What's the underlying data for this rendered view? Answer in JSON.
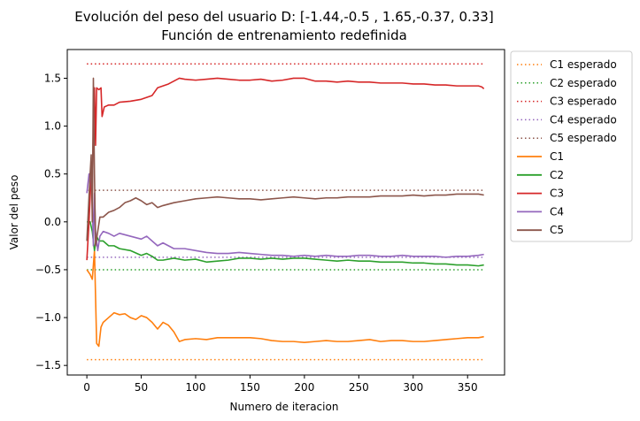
{
  "chart_data": {
    "type": "line",
    "title": "Evolución del peso del usuario D: [-1.44,-0.5 , 1.65,-0.37, 0.33]",
    "subtitle": "Función de entrenamiento redefinida",
    "xlabel": "Numero de iteracion",
    "ylabel": "Valor del peso",
    "xlim": [
      -18,
      384
    ],
    "ylim": [
      -1.6,
      1.8
    ],
    "xticks": [
      0,
      50,
      100,
      150,
      200,
      250,
      300,
      350
    ],
    "yticks": [
      -1.5,
      -1.0,
      -0.5,
      0.0,
      0.5,
      1.0,
      1.5
    ],
    "xtick_labels": [
      "0",
      "50",
      "100",
      "150",
      "200",
      "250",
      "300",
      "350"
    ],
    "ytick_labels": [
      "−1.5",
      "−1.0",
      "−0.5",
      "0.0",
      "0.5",
      "1.0",
      "1.5"
    ],
    "grid": false,
    "legend_position": "outside-right",
    "expected": [
      {
        "name": "C1 esperado",
        "value": -1.44,
        "color": "#ff7f0e"
      },
      {
        "name": "C2 esperado",
        "value": -0.5,
        "color": "#2ca02c"
      },
      {
        "name": "C3 esperado",
        "value": 1.65,
        "color": "#d62728"
      },
      {
        "name": "C4 esperado",
        "value": -0.37,
        "color": "#9467bd"
      },
      {
        "name": "C5 esperado",
        "value": 0.33,
        "color": "#8c564b"
      }
    ],
    "series": [
      {
        "name": "C1",
        "color": "#ff7f0e",
        "points": [
          [
            0,
            -0.5
          ],
          [
            3,
            -0.55
          ],
          [
            5,
            -0.6
          ],
          [
            7,
            -0.3
          ],
          [
            9,
            -1.27
          ],
          [
            11,
            -1.3
          ],
          [
            13,
            -1.1
          ],
          [
            15,
            -1.05
          ],
          [
            20,
            -1.0
          ],
          [
            25,
            -0.95
          ],
          [
            30,
            -0.97
          ],
          [
            35,
            -0.96
          ],
          [
            40,
            -1.0
          ],
          [
            45,
            -1.02
          ],
          [
            50,
            -0.98
          ],
          [
            55,
            -1.0
          ],
          [
            60,
            -1.05
          ],
          [
            65,
            -1.12
          ],
          [
            70,
            -1.05
          ],
          [
            75,
            -1.08
          ],
          [
            80,
            -1.15
          ],
          [
            85,
            -1.25
          ],
          [
            90,
            -1.23
          ],
          [
            100,
            -1.22
          ],
          [
            110,
            -1.23
          ],
          [
            120,
            -1.21
          ],
          [
            130,
            -1.21
          ],
          [
            150,
            -1.21
          ],
          [
            160,
            -1.22
          ],
          [
            170,
            -1.24
          ],
          [
            180,
            -1.25
          ],
          [
            190,
            -1.25
          ],
          [
            200,
            -1.26
          ],
          [
            210,
            -1.25
          ],
          [
            220,
            -1.24
          ],
          [
            230,
            -1.25
          ],
          [
            240,
            -1.25
          ],
          [
            250,
            -1.24
          ],
          [
            260,
            -1.23
          ],
          [
            270,
            -1.25
          ],
          [
            280,
            -1.24
          ],
          [
            290,
            -1.24
          ],
          [
            300,
            -1.25
          ],
          [
            310,
            -1.25
          ],
          [
            320,
            -1.24
          ],
          [
            330,
            -1.23
          ],
          [
            340,
            -1.22
          ],
          [
            350,
            -1.21
          ],
          [
            360,
            -1.21
          ],
          [
            365,
            -1.2
          ]
        ]
      },
      {
        "name": "C2",
        "color": "#2ca02c",
        "points": [
          [
            0,
            0.0
          ],
          [
            3,
            0.0
          ],
          [
            5,
            -0.1
          ],
          [
            7,
            -0.3
          ],
          [
            9,
            -0.15
          ],
          [
            11,
            -0.2
          ],
          [
            15,
            -0.2
          ],
          [
            20,
            -0.25
          ],
          [
            25,
            -0.25
          ],
          [
            30,
            -0.28
          ],
          [
            40,
            -0.3
          ],
          [
            50,
            -0.35
          ],
          [
            55,
            -0.33
          ],
          [
            60,
            -0.36
          ],
          [
            65,
            -0.4
          ],
          [
            70,
            -0.4
          ],
          [
            80,
            -0.38
          ],
          [
            90,
            -0.4
          ],
          [
            100,
            -0.39
          ],
          [
            110,
            -0.42
          ],
          [
            120,
            -0.41
          ],
          [
            130,
            -0.4
          ],
          [
            140,
            -0.38
          ],
          [
            150,
            -0.38
          ],
          [
            160,
            -0.39
          ],
          [
            170,
            -0.38
          ],
          [
            180,
            -0.39
          ],
          [
            190,
            -0.38
          ],
          [
            200,
            -0.38
          ],
          [
            210,
            -0.39
          ],
          [
            220,
            -0.4
          ],
          [
            230,
            -0.41
          ],
          [
            240,
            -0.4
          ],
          [
            250,
            -0.41
          ],
          [
            260,
            -0.41
          ],
          [
            270,
            -0.42
          ],
          [
            280,
            -0.42
          ],
          [
            290,
            -0.42
          ],
          [
            300,
            -0.43
          ],
          [
            310,
            -0.43
          ],
          [
            320,
            -0.44
          ],
          [
            330,
            -0.44
          ],
          [
            340,
            -0.45
          ],
          [
            350,
            -0.45
          ],
          [
            360,
            -0.46
          ],
          [
            365,
            -0.45
          ]
        ]
      },
      {
        "name": "C3",
        "color": "#d62728",
        "points": [
          [
            0,
            -0.4
          ],
          [
            2,
            0.0
          ],
          [
            4,
            0.5
          ],
          [
            5,
            0.3
          ],
          [
            6,
            1.0
          ],
          [
            7,
            1.4
          ],
          [
            8,
            0.8
          ],
          [
            9,
            1.4
          ],
          [
            11,
            1.38
          ],
          [
            13,
            1.4
          ],
          [
            14,
            1.1
          ],
          [
            16,
            1.2
          ],
          [
            20,
            1.22
          ],
          [
            25,
            1.22
          ],
          [
            30,
            1.25
          ],
          [
            40,
            1.26
          ],
          [
            50,
            1.28
          ],
          [
            55,
            1.3
          ],
          [
            60,
            1.32
          ],
          [
            65,
            1.4
          ],
          [
            70,
            1.42
          ],
          [
            75,
            1.44
          ],
          [
            80,
            1.47
          ],
          [
            85,
            1.5
          ],
          [
            90,
            1.49
          ],
          [
            100,
            1.48
          ],
          [
            110,
            1.49
          ],
          [
            120,
            1.5
          ],
          [
            130,
            1.49
          ],
          [
            140,
            1.48
          ],
          [
            150,
            1.48
          ],
          [
            160,
            1.49
          ],
          [
            170,
            1.47
          ],
          [
            180,
            1.48
          ],
          [
            190,
            1.5
          ],
          [
            200,
            1.5
          ],
          [
            210,
            1.47
          ],
          [
            220,
            1.47
          ],
          [
            230,
            1.46
          ],
          [
            240,
            1.47
          ],
          [
            250,
            1.46
          ],
          [
            260,
            1.46
          ],
          [
            270,
            1.45
          ],
          [
            280,
            1.45
          ],
          [
            290,
            1.45
          ],
          [
            300,
            1.44
          ],
          [
            310,
            1.44
          ],
          [
            320,
            1.43
          ],
          [
            330,
            1.43
          ],
          [
            340,
            1.42
          ],
          [
            350,
            1.42
          ],
          [
            360,
            1.42
          ],
          [
            363,
            1.41
          ],
          [
            365,
            1.39
          ]
        ]
      },
      {
        "name": "C4",
        "color": "#9467bd",
        "points": [
          [
            0,
            0.3
          ],
          [
            2,
            0.5
          ],
          [
            4,
            0.5
          ],
          [
            5,
            0.2
          ],
          [
            6,
            -0.25
          ],
          [
            7,
            0.3
          ],
          [
            8,
            -0.1
          ],
          [
            10,
            -0.3
          ],
          [
            12,
            -0.15
          ],
          [
            15,
            -0.1
          ],
          [
            20,
            -0.12
          ],
          [
            25,
            -0.15
          ],
          [
            30,
            -0.12
          ],
          [
            40,
            -0.15
          ],
          [
            50,
            -0.18
          ],
          [
            55,
            -0.15
          ],
          [
            60,
            -0.2
          ],
          [
            65,
            -0.25
          ],
          [
            70,
            -0.22
          ],
          [
            80,
            -0.28
          ],
          [
            90,
            -0.28
          ],
          [
            100,
            -0.3
          ],
          [
            110,
            -0.32
          ],
          [
            120,
            -0.33
          ],
          [
            130,
            -0.33
          ],
          [
            140,
            -0.32
          ],
          [
            150,
            -0.33
          ],
          [
            160,
            -0.34
          ],
          [
            170,
            -0.35
          ],
          [
            180,
            -0.35
          ],
          [
            190,
            -0.36
          ],
          [
            200,
            -0.35
          ],
          [
            210,
            -0.36
          ],
          [
            220,
            -0.35
          ],
          [
            230,
            -0.36
          ],
          [
            240,
            -0.36
          ],
          [
            250,
            -0.35
          ],
          [
            260,
            -0.35
          ],
          [
            270,
            -0.36
          ],
          [
            280,
            -0.36
          ],
          [
            290,
            -0.35
          ],
          [
            300,
            -0.36
          ],
          [
            310,
            -0.36
          ],
          [
            320,
            -0.36
          ],
          [
            330,
            -0.37
          ],
          [
            340,
            -0.36
          ],
          [
            350,
            -0.36
          ],
          [
            360,
            -0.35
          ],
          [
            365,
            -0.34
          ]
        ]
      },
      {
        "name": "C5",
        "color": "#8c564b",
        "points": [
          [
            0,
            -0.2
          ],
          [
            3,
            0.5
          ],
          [
            4,
            0.7
          ],
          [
            5,
            0.0
          ],
          [
            6,
            1.5
          ],
          [
            7,
            0.5
          ],
          [
            8,
            -0.25
          ],
          [
            10,
            -0.1
          ],
          [
            12,
            0.05
          ],
          [
            15,
            0.05
          ],
          [
            20,
            0.1
          ],
          [
            25,
            0.12
          ],
          [
            30,
            0.15
          ],
          [
            35,
            0.2
          ],
          [
            40,
            0.22
          ],
          [
            45,
            0.25
          ],
          [
            50,
            0.22
          ],
          [
            55,
            0.18
          ],
          [
            60,
            0.2
          ],
          [
            65,
            0.15
          ],
          [
            70,
            0.17
          ],
          [
            80,
            0.2
          ],
          [
            90,
            0.22
          ],
          [
            100,
            0.24
          ],
          [
            110,
            0.25
          ],
          [
            120,
            0.26
          ],
          [
            130,
            0.25
          ],
          [
            140,
            0.24
          ],
          [
            150,
            0.24
          ],
          [
            160,
            0.23
          ],
          [
            170,
            0.24
          ],
          [
            180,
            0.25
          ],
          [
            190,
            0.26
          ],
          [
            200,
            0.25
          ],
          [
            210,
            0.24
          ],
          [
            220,
            0.25
          ],
          [
            230,
            0.25
          ],
          [
            240,
            0.26
          ],
          [
            250,
            0.26
          ],
          [
            260,
            0.26
          ],
          [
            270,
            0.27
          ],
          [
            280,
            0.27
          ],
          [
            290,
            0.27
          ],
          [
            300,
            0.28
          ],
          [
            310,
            0.27
          ],
          [
            320,
            0.28
          ],
          [
            330,
            0.28
          ],
          [
            340,
            0.29
          ],
          [
            350,
            0.29
          ],
          [
            360,
            0.29
          ],
          [
            365,
            0.28
          ]
        ]
      }
    ]
  }
}
